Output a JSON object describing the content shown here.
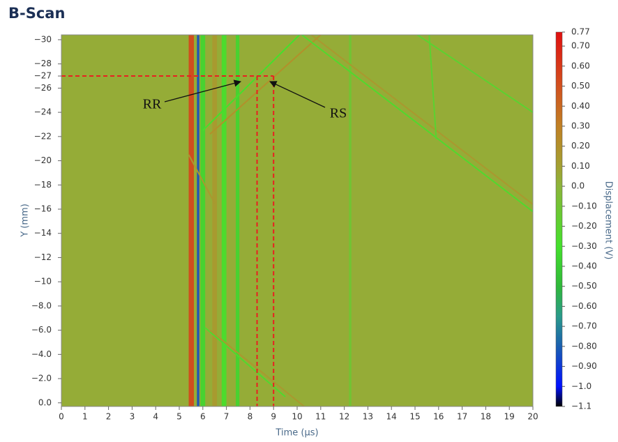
{
  "chart_data": {
    "type": "heatmap",
    "title": "B-Scan",
    "xlabel": "Time (μs)",
    "ylabel": "Y (mm)",
    "colorbar_label": "Displacement (V)",
    "xlim": [
      0,
      20
    ],
    "ylim": [
      0.3,
      -30.4
    ],
    "xticks": [
      0,
      1,
      2,
      3,
      4,
      5,
      6,
      7,
      8,
      9,
      10,
      11,
      12,
      13,
      14,
      15,
      16,
      17,
      18,
      19,
      20
    ],
    "yticks": [
      {
        "value": -30,
        "label": "−30"
      },
      {
        "value": -28,
        "label": "−28"
      },
      {
        "value": -27,
        "label": "−27"
      },
      {
        "value": -26,
        "label": "−26"
      },
      {
        "value": -24,
        "label": "−24"
      },
      {
        "value": -22,
        "label": "−22"
      },
      {
        "value": -20,
        "label": "−20"
      },
      {
        "value": -18,
        "label": "−18"
      },
      {
        "value": -16,
        "label": "−16"
      },
      {
        "value": -14,
        "label": "−14"
      },
      {
        "value": -12,
        "label": "−12"
      },
      {
        "value": -10,
        "label": "−10"
      },
      {
        "value": -8,
        "label": "−8.0"
      },
      {
        "value": -6,
        "label": "−6.0"
      },
      {
        "value": -4,
        "label": "−4.0"
      },
      {
        "value": -2,
        "label": "−2.0"
      },
      {
        "value": 0,
        "label": "0.0"
      }
    ],
    "clim": [
      -1.1,
      0.77
    ],
    "cticks": [
      {
        "value": 0.77,
        "label": "0.77"
      },
      {
        "value": 0.7,
        "label": "0.70"
      },
      {
        "value": 0.6,
        "label": "0.60"
      },
      {
        "value": 0.5,
        "label": "0.50"
      },
      {
        "value": 0.4,
        "label": "0.40"
      },
      {
        "value": 0.3,
        "label": "0.30"
      },
      {
        "value": 0.2,
        "label": "0.20"
      },
      {
        "value": 0.1,
        "label": "0.10"
      },
      {
        "value": 0,
        "label": "0.0"
      },
      {
        "value": -0.1,
        "label": "−0.10"
      },
      {
        "value": -0.2,
        "label": "−0.20"
      },
      {
        "value": -0.3,
        "label": "−0.30"
      },
      {
        "value": -0.4,
        "label": "−0.40"
      },
      {
        "value": -0.5,
        "label": "−0.50"
      },
      {
        "value": -0.6,
        "label": "−0.60"
      },
      {
        "value": -0.7,
        "label": "−0.70"
      },
      {
        "value": -0.8,
        "label": "−0.80"
      },
      {
        "value": -0.9,
        "label": "−0.90"
      },
      {
        "value": -1.0,
        "label": "−1.0"
      },
      {
        "value": -1.1,
        "label": "−1.1"
      }
    ],
    "colorscale": [
      {
        "value": -1.1,
        "color": "#000000"
      },
      {
        "value": -1.0,
        "color": "#0010ff"
      },
      {
        "value": -0.8,
        "color": "#1a5fb0"
      },
      {
        "value": -0.65,
        "color": "#2a9a8a"
      },
      {
        "value": -0.5,
        "color": "#2fb83a"
      },
      {
        "value": -0.3,
        "color": "#44e02c"
      },
      {
        "value": -0.1,
        "color": "#72c434"
      },
      {
        "value": 0,
        "color": "#8cb43a"
      },
      {
        "value": 0.1,
        "color": "#a3a032"
      },
      {
        "value": 0.3,
        "color": "#c08024"
      },
      {
        "value": 0.5,
        "color": "#d2501e"
      },
      {
        "value": 0.77,
        "color": "#e01010"
      }
    ],
    "background": 0.04,
    "bands": [
      {
        "x": [
          5.4,
          5.62
        ],
        "value": 0.55
      },
      {
        "x": [
          5.75,
          5.85
        ],
        "value": -0.85
      },
      {
        "x": [
          5.9,
          6.1
        ],
        "value": -0.35
      },
      {
        "x": [
          6.4,
          6.6
        ],
        "value": 0.15
      },
      {
        "x": [
          6.8,
          7.0
        ],
        "value": -0.3
      },
      {
        "x": [
          7.4,
          7.55
        ],
        "value": -0.35
      },
      {
        "x": [
          12.2,
          12.3
        ],
        "value": -0.12
      }
    ],
    "lines": [
      {
        "x": [
          6.0,
          10.1
        ],
        "y": [
          -22.5,
          -30.4
        ],
        "value": -0.3
      },
      {
        "x": [
          6.3,
          11.0
        ],
        "y": [
          -22.2,
          -30.4
        ],
        "value": 0.2
      },
      {
        "x": [
          10.2,
          20
        ],
        "y": [
          -30.4,
          -15.8
        ],
        "value": -0.25
      },
      {
        "x": [
          10.6,
          20
        ],
        "y": [
          -30.4,
          -16.4
        ],
        "value": 0.15
      },
      {
        "x": [
          15.1,
          20
        ],
        "y": [
          -30.4,
          -24.0
        ],
        "value": -0.2
      },
      {
        "x": [
          15.6,
          15.9
        ],
        "y": [
          -30.4,
          -21.8
        ],
        "value": -0.2
      },
      {
        "x": [
          6.1,
          9.5
        ],
        "y": [
          -6.2,
          -0.5
        ],
        "value": -0.25
      },
      {
        "x": [
          6.3,
          10.3
        ],
        "y": [
          -6.0,
          0.3
        ],
        "value": 0.15
      },
      {
        "x": [
          5.4,
          6.5
        ],
        "y": [
          -20.5,
          -16.5
        ],
        "value": 0.15
      }
    ],
    "reference_lines": [
      {
        "axis": "y",
        "value": -27
      },
      {
        "axis": "x",
        "value": 8.3
      },
      {
        "axis": "x",
        "value": 9.0
      }
    ],
    "reference_color": "#e82020",
    "annotations": [
      {
        "text": "RR"
      },
      {
        "text": "RS"
      }
    ]
  }
}
